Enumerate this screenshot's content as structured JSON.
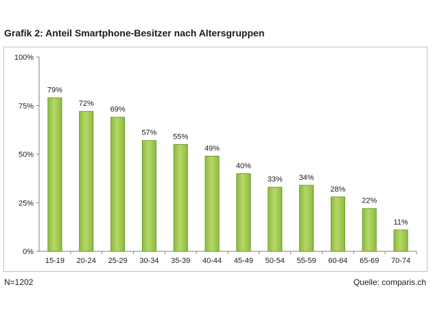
{
  "chart_data": {
    "type": "bar",
    "title": "Grafik 2: Anteil Smartphone-Besitzer nach Altersgruppen",
    "categories": [
      "15-19",
      "20-24",
      "25-29",
      "30-34",
      "35-39",
      "40-44",
      "45-49",
      "50-54",
      "55-59",
      "60-64",
      "65-69",
      "70-74"
    ],
    "values": [
      79,
      72,
      69,
      57,
      55,
      49,
      40,
      33,
      34,
      28,
      22,
      11
    ],
    "data_labels": [
      "79%",
      "72%",
      "69%",
      "57%",
      "55%",
      "49%",
      "40%",
      "33%",
      "34%",
      "28%",
      "22%",
      "11%"
    ],
    "ylim": [
      0,
      100
    ],
    "yticks": [
      0,
      25,
      50,
      75,
      100
    ],
    "ytick_labels": [
      "0%",
      "25%",
      "50%",
      "75%",
      "100%"
    ],
    "grid": false,
    "bar_color": "#8dbb3c",
    "bar_color_dark": "#5e8a1f",
    "bar_color_light": "#b5d86a"
  },
  "footer": {
    "sample_size": "N=1202",
    "source": "Quelle: comparis.ch"
  }
}
